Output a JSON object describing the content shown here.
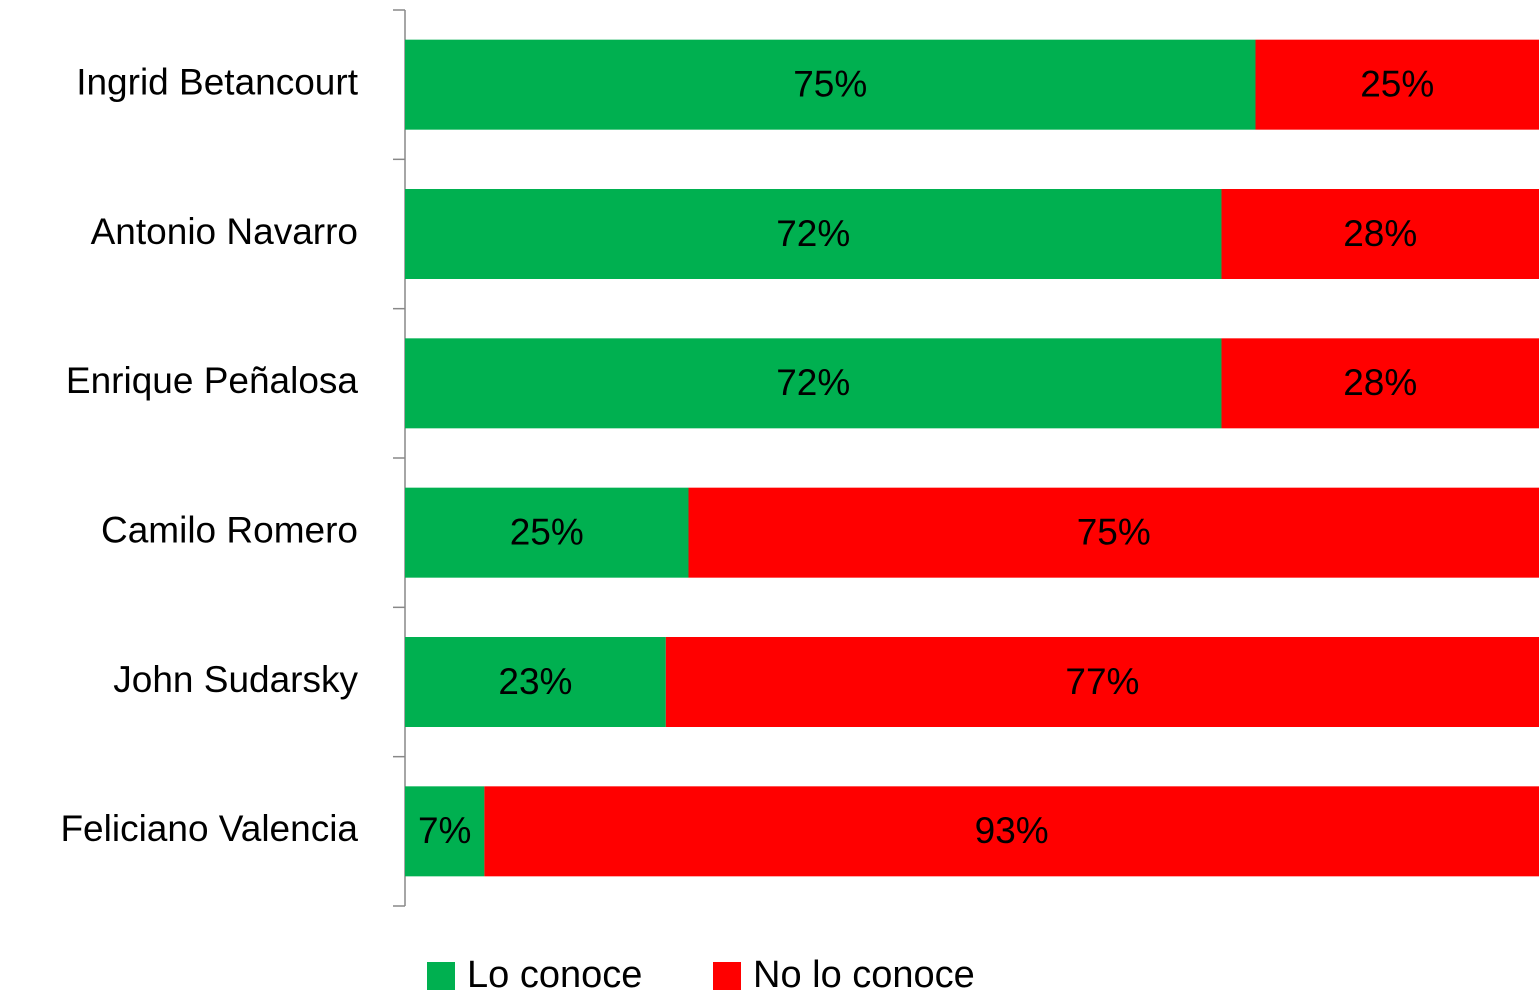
{
  "chart_data": {
    "type": "stacked-bar-horizontal",
    "categories": [
      "Ingrid Betancourt",
      "Antonio Navarro",
      "Enrique Peñalosa",
      "Camilo Romero",
      "John Sudarsky",
      "Feliciano Valencia"
    ],
    "series": [
      {
        "name": "Lo conoce",
        "color": "#00b050",
        "values": [
          75,
          72,
          72,
          25,
          23,
          7
        ],
        "value_labels": [
          "75%",
          "72%",
          "72%",
          "25%",
          "23%",
          "7%"
        ]
      },
      {
        "name": "No lo conoce",
        "color": "#ff0000",
        "values": [
          25,
          28,
          28,
          75,
          77,
          93
        ],
        "value_labels": [
          "25%",
          "28%",
          "28%",
          "75%",
          "77%",
          "93%"
        ]
      }
    ],
    "xlim": [
      0,
      100
    ],
    "legend": "bottom"
  }
}
